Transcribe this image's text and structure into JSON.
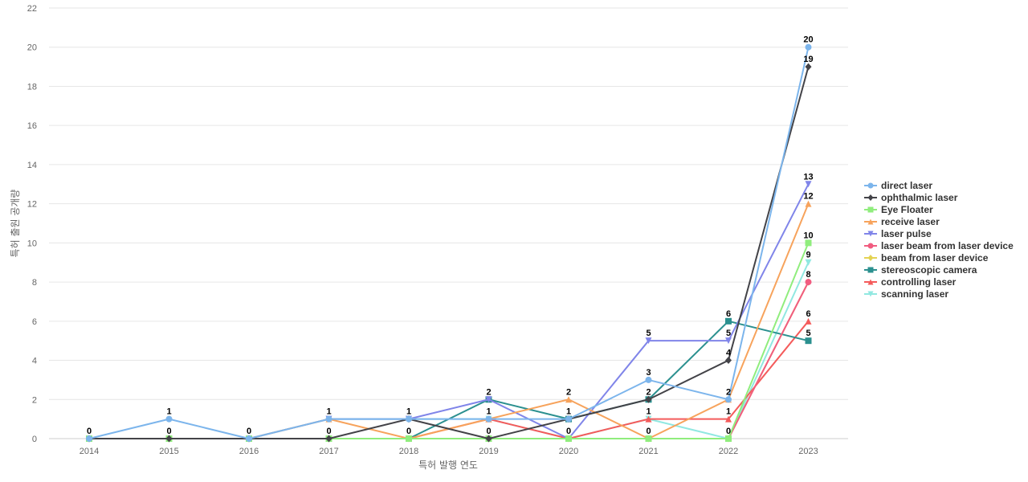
{
  "chart_data": {
    "type": "line",
    "title": "",
    "xlabel": "특허 발행 연도",
    "ylabel": "특허 출원 공개량",
    "x": [
      "2014",
      "2015",
      "2016",
      "2017",
      "2018",
      "2019",
      "2020",
      "2021",
      "2022",
      "2023"
    ],
    "ylim": [
      0,
      22
    ],
    "yticks": [
      0,
      2,
      4,
      6,
      8,
      10,
      12,
      14,
      16,
      18,
      20,
      22
    ],
    "grid": true,
    "legend_position": "right",
    "series": [
      {
        "name": "direct laser",
        "color": "#7cb5ec",
        "marker": "circle",
        "values": [
          0,
          1,
          0,
          1,
          1,
          1,
          1,
          3,
          2,
          20
        ]
      },
      {
        "name": "ophthalmic laser",
        "color": "#434348",
        "marker": "diamond",
        "values": [
          0,
          0,
          0,
          0,
          1,
          0,
          1,
          2,
          4,
          19
        ]
      },
      {
        "name": "Eye Floater",
        "color": "#90ed7d",
        "marker": "square",
        "values": [
          0,
          0,
          0,
          0,
          0,
          0,
          0,
          0,
          0,
          10
        ]
      },
      {
        "name": "receive laser",
        "color": "#f7a35c",
        "marker": "triangle",
        "values": [
          0,
          0,
          0,
          1,
          0,
          1,
          2,
          0,
          2,
          12
        ]
      },
      {
        "name": "laser pulse",
        "color": "#8085e9",
        "marker": "triangle-down",
        "values": [
          0,
          0,
          0,
          1,
          1,
          2,
          0,
          5,
          5,
          13
        ]
      },
      {
        "name": "laser beam from laser device",
        "color": "#f15c80",
        "marker": "circle",
        "values": [
          0,
          0,
          0,
          0,
          0,
          0,
          0,
          0,
          0,
          8
        ]
      },
      {
        "name": "beam from laser device",
        "color": "#e4d354",
        "marker": "diamond",
        "values": [
          0,
          0,
          0,
          0,
          0,
          0,
          0,
          0,
          0,
          8
        ]
      },
      {
        "name": "stereoscopic camera",
        "color": "#2b908f",
        "marker": "square",
        "values": [
          0,
          0,
          0,
          0,
          0,
          2,
          1,
          2,
          6,
          5
        ]
      },
      {
        "name": "controlling laser",
        "color": "#f45b5b",
        "marker": "triangle",
        "values": [
          0,
          0,
          0,
          0,
          0,
          1,
          0,
          1,
          1,
          6
        ]
      },
      {
        "name": "scanning laser",
        "color": "#91e8e1",
        "marker": "triangle-down",
        "values": [
          0,
          0,
          0,
          1,
          1,
          1,
          0,
          1,
          0,
          9
        ]
      }
    ],
    "data_labels": [
      {
        "x": "2014",
        "text": "0"
      },
      {
        "x": "2015",
        "text": "1"
      },
      {
        "x": "2015",
        "text": "0"
      },
      {
        "x": "2016",
        "text": "0"
      },
      {
        "x": "2017",
        "text": "1"
      },
      {
        "x": "2017",
        "text": "0"
      },
      {
        "x": "2018",
        "text": "1"
      },
      {
        "x": "2018",
        "text": "0"
      },
      {
        "x": "2019",
        "text": "2"
      },
      {
        "x": "2019",
        "text": "1"
      },
      {
        "x": "2019",
        "text": "0"
      },
      {
        "x": "2020",
        "text": "2"
      },
      {
        "x": "2020",
        "text": "1"
      },
      {
        "x": "2020",
        "text": "0"
      },
      {
        "x": "2021",
        "text": "5"
      },
      {
        "x": "2021",
        "text": "3"
      },
      {
        "x": "2021",
        "text": "2"
      },
      {
        "x": "2021",
        "text": "1"
      },
      {
        "x": "2021",
        "text": "0"
      },
      {
        "x": "2022",
        "text": "6"
      },
      {
        "x": "2022",
        "text": "5"
      },
      {
        "x": "2022",
        "text": "4"
      },
      {
        "x": "2022",
        "text": "2"
      },
      {
        "x": "2022",
        "text": "1"
      },
      {
        "x": "2022",
        "text": "0"
      },
      {
        "x": "2023",
        "text": "20"
      },
      {
        "x": "2023",
        "text": "19"
      },
      {
        "x": "2023",
        "text": "13"
      },
      {
        "x": "2023",
        "text": "12"
      },
      {
        "x": "2023",
        "text": "10"
      },
      {
        "x": "2023",
        "text": "9"
      },
      {
        "x": "2023",
        "text": "8"
      },
      {
        "x": "2023",
        "text": "6"
      },
      {
        "x": "2023",
        "text": "5"
      }
    ]
  }
}
